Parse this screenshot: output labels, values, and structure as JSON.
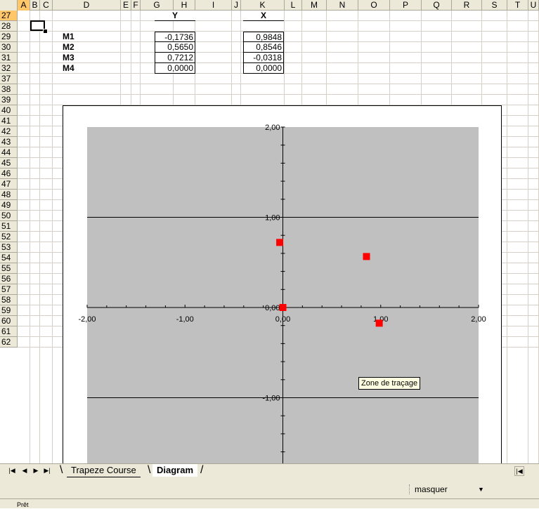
{
  "columns": [
    "A",
    "B",
    "C",
    "D",
    "E",
    "F",
    "G",
    "H",
    "I",
    "J",
    "K",
    "L",
    "M",
    "N",
    "O",
    "P",
    "Q",
    "R",
    "S",
    "T",
    "U"
  ],
  "rows": [
    "27",
    "28",
    "29",
    "30",
    "31",
    "32",
    "37",
    "38",
    "39",
    "40",
    "41",
    "42",
    "43",
    "44",
    "45",
    "46",
    "47",
    "48",
    "49",
    "50",
    "51",
    "52",
    "53",
    "54",
    "55",
    "56",
    "57",
    "58",
    "59",
    "60",
    "61",
    "62"
  ],
  "selected_cell": "A27",
  "table": {
    "y_header": "Y",
    "x_header": "X",
    "points": [
      {
        "label": "M1",
        "y": "-0,1736",
        "x": "0,9848"
      },
      {
        "label": "M2",
        "y": "0,5650",
        "x": "0,8546"
      },
      {
        "label": "M3",
        "y": "0,7212",
        "x": "-0,0318"
      },
      {
        "label": "M4",
        "y": "0,0000",
        "x": "0,0000"
      }
    ]
  },
  "chart_data": {
    "type": "scatter",
    "x": [
      0.9848,
      0.8546,
      -0.0318,
      0.0
    ],
    "y": [
      -0.1736,
      0.565,
      0.7212,
      0.0
    ],
    "xlim": [
      -2,
      2
    ],
    "ylim": [
      -2,
      2
    ],
    "xticks": [
      "-2,00",
      "-1,00",
      "0,00",
      "1,00",
      "2,00"
    ],
    "yticks": [
      "2,00",
      "1,00",
      "0,00",
      "-1,00"
    ],
    "grid": "major horizontal",
    "marker_color": "#ff0000",
    "plot_background": "#c0c0c0"
  },
  "tooltip": "Zone de traçage",
  "sheet_tabs": [
    {
      "label": "Trapeze Course",
      "active": false
    },
    {
      "label": "Diagram",
      "active": true
    }
  ],
  "toolbar": {
    "combo_value": "masquer"
  },
  "status": "Prêt"
}
